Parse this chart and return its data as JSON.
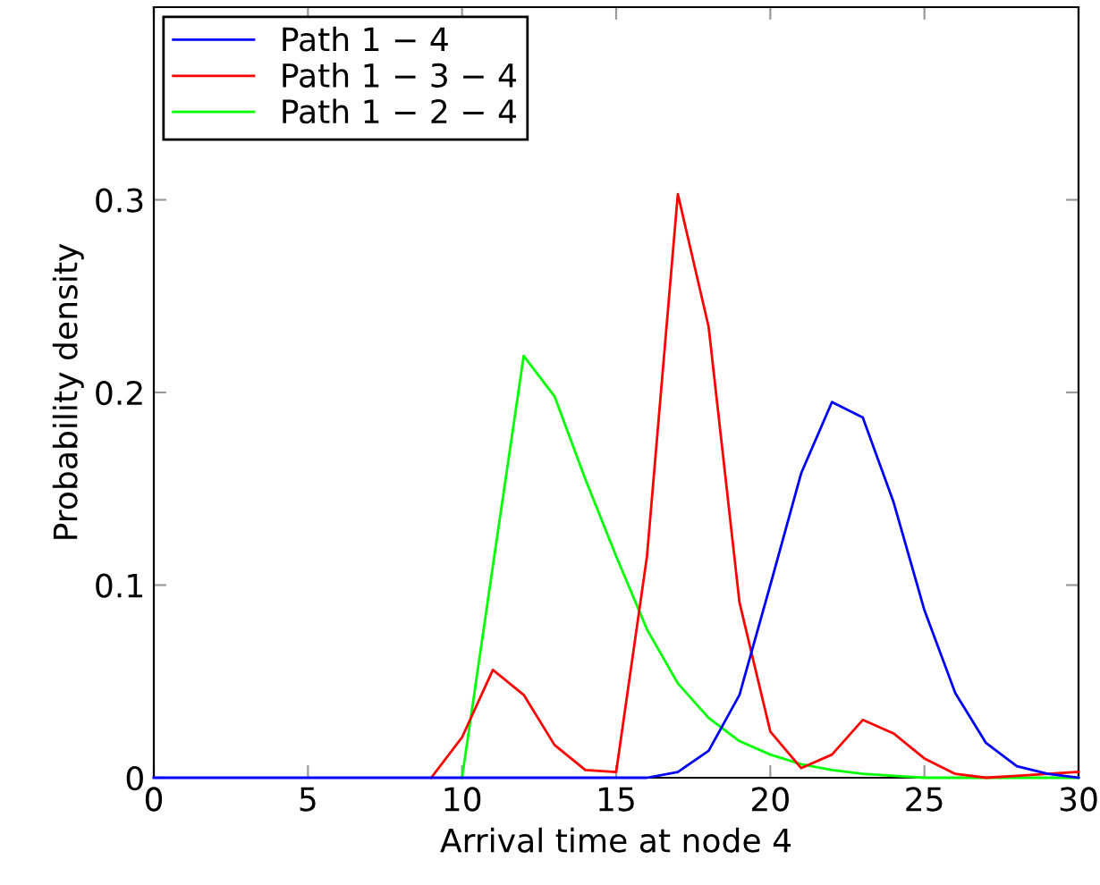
{
  "chart_data": {
    "type": "line",
    "xlabel": "Arrival time at node 4",
    "ylabel": "Probability density",
    "x": [
      0,
      1,
      2,
      3,
      4,
      5,
      6,
      7,
      8,
      9,
      10,
      11,
      12,
      13,
      14,
      15,
      16,
      17,
      18,
      19,
      20,
      21,
      22,
      23,
      24,
      25,
      26,
      27,
      28,
      29,
      30
    ],
    "series": [
      {
        "name": "Path 1 − 4",
        "color": "#0000ff",
        "values": [
          0,
          0,
          0,
          0,
          0,
          0,
          0,
          0,
          0,
          0,
          0,
          0,
          0,
          0,
          0,
          0,
          0,
          0.003,
          0.014,
          0.043,
          0.1,
          0.158,
          0.195,
          0.187,
          0.143,
          0.087,
          0.044,
          0.018,
          0.006,
          0.002,
          0
        ]
      },
      {
        "name": "Path 1 − 3 − 4",
        "color": "#ff0000",
        "values": [
          null,
          null,
          null,
          null,
          null,
          null,
          null,
          null,
          null,
          0,
          0.021,
          0.056,
          0.043,
          0.017,
          0.004,
          0.003,
          0.115,
          0.303,
          0.234,
          0.091,
          0.024,
          0.005,
          0.012,
          0.03,
          0.023,
          0.01,
          0.002,
          0,
          0.001,
          0.002,
          0.003
        ]
      },
      {
        "name": "Path 1 − 2 − 4",
        "color": "#00ff00",
        "values": [
          null,
          null,
          null,
          null,
          null,
          null,
          null,
          null,
          null,
          null,
          0,
          0.11,
          0.219,
          0.198,
          0.155,
          0.115,
          0.077,
          0.049,
          0.031,
          0.019,
          0.012,
          0.007,
          0.004,
          0.002,
          0.001,
          0,
          0,
          0,
          0,
          0,
          0
        ]
      }
    ],
    "xlim": [
      0,
      30
    ],
    "ylim": [
      0,
      0.4
    ],
    "xticks": [
      0,
      5,
      10,
      15,
      20,
      25,
      30
    ],
    "yticks": [
      0,
      0.1,
      0.2,
      0.3
    ],
    "grid": false,
    "legend": "top left",
    "marker": "none",
    "line_style": "solid"
  }
}
